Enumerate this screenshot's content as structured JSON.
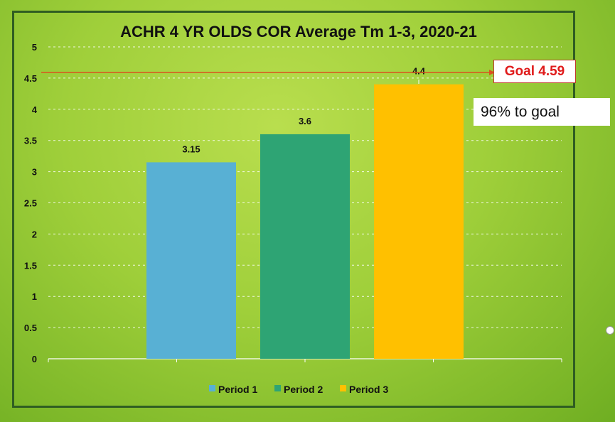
{
  "chart_data": {
    "type": "bar",
    "title": "ACHR 4 YR OLDS COR Average Tm 1-3, 2020-21",
    "categories": [
      "Period 1",
      "Period 2",
      "Period 3"
    ],
    "values": [
      3.15,
      3.6,
      4.4
    ],
    "value_labels": [
      "3.15",
      "3.6",
      "4.4"
    ],
    "colors": [
      "#58b0d4",
      "#2ea474",
      "#ffc000"
    ],
    "ylim": [
      0,
      5
    ],
    "yticks": [
      "0",
      "0.5",
      "1",
      "1.5",
      "2",
      "2.5",
      "3",
      "3.5",
      "4",
      "4.5",
      "5"
    ],
    "grid": true,
    "legend": {
      "position": "bottom",
      "entries": [
        "Period 1",
        "Period 2",
        "Period 3"
      ]
    },
    "goal_line": {
      "value": 4.59,
      "color": "#d9531e"
    }
  },
  "annotations": {
    "goal_label": "Goal 4.59",
    "percent_label": "96% to goal"
  }
}
